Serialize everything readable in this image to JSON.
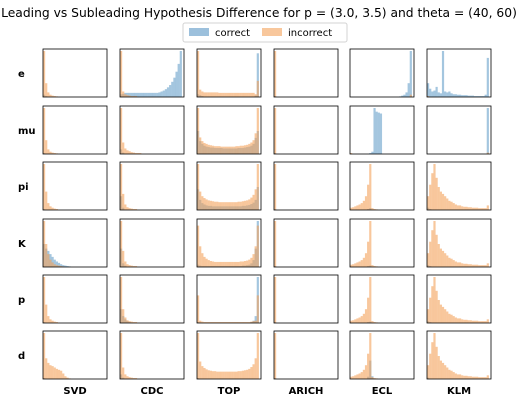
{
  "chart_data": {
    "type": "histogram-grid",
    "title": "Leading vs Subleading Hypothesis Difference for p = (3.0, 3.5) and theta = (40, 60)",
    "legend": {
      "placement": "top-center",
      "entries": [
        "correct",
        "incorrect"
      ]
    },
    "colors": {
      "correct": "#4a8dbf",
      "incorrect": "#f4a25a"
    },
    "rows": [
      "e",
      "mu",
      "pi",
      "K",
      "p",
      "d"
    ],
    "columns": [
      "SVD",
      "CDC",
      "TOP",
      "ARICH",
      "ECL",
      "KLM"
    ],
    "axes": {
      "ticks": false,
      "grid": false,
      "x_range": [
        0,
        1
      ],
      "bins": 30
    },
    "panels": [
      [
        {
          "correct": [
            0.05,
            0.02
          ],
          "incorrect": [
            1.0,
            0.3,
            0.1,
            0.05,
            0.03,
            0.02,
            0.01
          ]
        },
        {
          "correct": [
            0.06,
            0.07,
            0.09,
            0.09,
            0.09,
            0.09,
            0.09,
            0.09,
            0.09,
            0.09,
            0.09,
            0.09,
            0.09,
            0.09,
            0.09,
            0.09,
            0.09,
            0.09,
            0.1,
            0.12,
            0.14,
            0.17,
            0.21,
            0.26,
            0.33,
            0.42,
            0.55,
            0.72,
            1.0
          ],
          "incorrect": [
            1.0,
            0.12,
            0.06,
            0.04,
            0.03,
            0.02,
            0.02,
            0.02
          ]
        },
        {
          "correct": [
            0.06,
            0.04,
            0.02,
            0,
            0,
            0,
            0,
            0,
            0,
            0,
            0,
            0,
            0,
            0,
            0,
            0,
            0,
            0,
            0,
            0,
            0,
            0,
            0,
            0,
            0,
            0,
            0,
            0.03,
            0.95
          ],
          "incorrect": [
            1.0,
            0.16,
            0.12,
            0.1,
            0.1,
            0.1,
            0.1,
            0.1,
            0.1,
            0.1,
            0.09,
            0.09,
            0.09,
            0.09,
            0.09,
            0.09,
            0.09,
            0.09,
            0.09,
            0.09,
            0.09,
            0.09,
            0.09,
            0.09,
            0.09,
            0.09,
            0.09,
            0.06,
            0.35
          ]
        },
        {
          "correct": [
            0.02
          ],
          "incorrect": [
            1.0
          ]
        },
        {
          "correct": [
            0,
            0,
            0,
            0,
            0,
            0,
            0,
            0,
            0,
            0,
            0,
            0,
            0,
            0,
            0,
            0,
            0,
            0,
            0,
            0,
            0,
            0,
            0,
            0.01,
            0.03,
            0.05,
            0.1,
            0.3,
            1.0
          ],
          "incorrect": [
            0,
            0,
            0,
            0,
            0,
            0,
            0,
            0,
            0,
            0,
            0,
            0,
            0,
            0,
            0,
            0,
            0,
            0,
            0,
            0,
            0,
            0,
            0,
            0,
            0,
            0,
            0,
            0,
            0.05
          ]
        },
        {
          "correct": [
            0.3,
            0.18,
            0.12,
            0.14,
            0.22,
            0.1,
            0.08,
            1.0,
            0.12,
            0.1,
            0.12,
            0.08,
            0.06,
            0.06,
            0.05,
            0.05,
            0.04,
            0.04,
            0.04,
            0.03,
            0.03,
            0.03,
            0.02,
            0.02,
            0.02,
            0.02,
            0.02,
            0.05,
            0.85
          ],
          "incorrect": [
            0.02
          ]
        }
      ],
      [
        {
          "correct": [
            0.02
          ],
          "incorrect": [
            1.0,
            0.3,
            0.1,
            0.05,
            0.03,
            0.02,
            0.01
          ]
        },
        {
          "correct": [
            0.1,
            0.03
          ],
          "incorrect": [
            1.0,
            0.25,
            0.12,
            0.08,
            0.06,
            0.04,
            0.03,
            0.02,
            0.02,
            0.02
          ]
        },
        {
          "correct": [
            0.5,
            0.28,
            0.22,
            0.18,
            0.16,
            0.15,
            0.14,
            0.14,
            0.13,
            0.13,
            0.13,
            0.13,
            0.12,
            0.12,
            0.12,
            0.12,
            0.12,
            0.12,
            0.12,
            0.13,
            0.13,
            0.13,
            0.14,
            0.15,
            0.16,
            0.18,
            0.22,
            0.35,
            0.5
          ],
          "incorrect": [
            1.0,
            0.36,
            0.28,
            0.24,
            0.22,
            0.2,
            0.19,
            0.18,
            0.17,
            0.17,
            0.17,
            0.16,
            0.16,
            0.16,
            0.16,
            0.16,
            0.16,
            0.16,
            0.17,
            0.17,
            0.18,
            0.18,
            0.19,
            0.2,
            0.22,
            0.25,
            0.3,
            0.45,
            1.0
          ]
        },
        {
          "correct": [
            0.02
          ],
          "incorrect": [
            1.0
          ]
        },
        {
          "correct": [
            0,
            0,
            0,
            0,
            0,
            0,
            0,
            0,
            0,
            0.02,
            0.05,
            1.0,
            0.92,
            0.9,
            0.88
          ],
          "incorrect": [
            0.02
          ]
        },
        {
          "correct": [
            0,
            0,
            0,
            0,
            0,
            0,
            0,
            0,
            0,
            0,
            0,
            0,
            0,
            0,
            0,
            0,
            0,
            0,
            0,
            0,
            0,
            0,
            0,
            0,
            0,
            0,
            0,
            0,
            1.0
          ],
          "incorrect": [
            0,
            0,
            0,
            0,
            0,
            0,
            0,
            0,
            0,
            0,
            0,
            0,
            0,
            0,
            0,
            0,
            0,
            0,
            0,
            0,
            0,
            0,
            0,
            0,
            0,
            0,
            0,
            0,
            0.03
          ]
        }
      ],
      [
        {
          "correct": [
            0.02
          ],
          "incorrect": [
            1.0,
            0.4,
            0.15,
            0.08,
            0.05,
            0.03,
            0.02
          ]
        },
        {
          "correct": [
            0.3,
            0.05
          ],
          "incorrect": [
            1.0,
            0.35,
            0.12,
            0.06,
            0.04,
            0.03,
            0.02,
            0.02
          ]
        },
        {
          "correct": [
            0.45,
            0.22,
            0.15,
            0.12,
            0.1,
            0.09,
            0.09,
            0.08,
            0.08,
            0.08,
            0.08,
            0.08,
            0.08,
            0.08,
            0.08,
            0.08,
            0.08,
            0.08,
            0.08,
            0.08,
            0.08,
            0.09,
            0.09,
            0.1,
            0.11,
            0.13,
            0.16,
            0.22,
            0.5
          ],
          "incorrect": [
            1.0,
            0.4,
            0.3,
            0.26,
            0.23,
            0.21,
            0.2,
            0.19,
            0.18,
            0.18,
            0.17,
            0.17,
            0.17,
            0.17,
            0.17,
            0.17,
            0.17,
            0.17,
            0.17,
            0.18,
            0.18,
            0.19,
            0.2,
            0.21,
            0.23,
            0.27,
            0.33,
            0.45,
            1.0
          ]
        },
        {
          "correct": [
            0.02
          ],
          "incorrect": [
            1.0
          ]
        },
        {
          "correct": [
            0,
            0,
            0,
            0,
            0,
            0,
            0,
            0,
            0.02,
            0.04
          ],
          "incorrect": [
            0.05,
            0.06,
            0.08,
            0.1,
            0.12,
            0.15,
            0.2,
            0.3,
            0.55,
            1.0,
            0.04,
            0.02,
            0.01
          ]
        },
        {
          "correct": [
            0.05,
            0.02
          ],
          "incorrect": [
            0.3,
            0.55,
            0.8,
            1.0,
            0.7,
            0.5,
            0.4,
            0.35,
            0.3,
            0.25,
            0.2,
            0.18,
            0.15,
            0.12,
            0.1,
            0.1,
            0.08,
            0.07,
            0.07,
            0.06,
            0.06,
            0.05,
            0.05,
            0.05,
            0.04,
            0.04,
            0.04,
            0.04,
            0.1
          ]
        }
      ],
      [
        {
          "correct": [
            0.5,
            0.4,
            0.35,
            0.28,
            0.22,
            0.16,
            0.12,
            0.09,
            0.06,
            0.04,
            0.03,
            0.02,
            0.01
          ],
          "incorrect": [
            1.0,
            0.5,
            0.28,
            0.16,
            0.1,
            0.06,
            0.04,
            0.03,
            0.02,
            0.01
          ]
        },
        {
          "correct": [
            0.4,
            0.08,
            0.03
          ],
          "incorrect": [
            1.0,
            0.35,
            0.12,
            0.06,
            0.04,
            0.03,
            0.02,
            0.02
          ]
        },
        {
          "correct": [
            0.05,
            0.03,
            0.02,
            0.02,
            0.02,
            0.02,
            0.02,
            0.02,
            0.02,
            0.02,
            0.02,
            0.02,
            0.02,
            0.02,
            0.02,
            0.02,
            0.02,
            0.02,
            0.02,
            0.02,
            0.02,
            0.03,
            0.03,
            0.04,
            0.05,
            0.08,
            0.15,
            0.4,
            1.0
          ],
          "incorrect": [
            0.9,
            0.45,
            0.3,
            0.22,
            0.18,
            0.15,
            0.13,
            0.12,
            0.11,
            0.11,
            0.11,
            0.11,
            0.11,
            0.11,
            0.11,
            0.11,
            0.11,
            0.11,
            0.11,
            0.11,
            0.12,
            0.12,
            0.13,
            0.14,
            0.16,
            0.2,
            0.28,
            0.45,
            0.9
          ]
        },
        {
          "correct": [
            0.02
          ],
          "incorrect": [
            1.0
          ]
        },
        {
          "correct": [
            0,
            0,
            0,
            0,
            0,
            0,
            0,
            0,
            0.02,
            0.03
          ],
          "incorrect": [
            0.05,
            0.06,
            0.08,
            0.1,
            0.12,
            0.15,
            0.2,
            0.3,
            0.55,
            1.0,
            0.04,
            0.02,
            0.01
          ]
        },
        {
          "correct": [
            0.04,
            0.02
          ],
          "incorrect": [
            0.3,
            0.55,
            0.8,
            1.0,
            0.7,
            0.5,
            0.4,
            0.35,
            0.3,
            0.25,
            0.2,
            0.18,
            0.15,
            0.12,
            0.1,
            0.1,
            0.08,
            0.07,
            0.07,
            0.06,
            0.06,
            0.05,
            0.05,
            0.05,
            0.04,
            0.04,
            0.04,
            0.04,
            0.08
          ]
        }
      ],
      [
        {
          "correct": [
            0.02
          ],
          "incorrect": [
            1.0,
            0.4,
            0.15,
            0.08,
            0.05,
            0.03,
            0.02
          ]
        },
        {
          "correct": [
            0.3,
            0.15,
            0.08,
            0.04,
            0.02
          ],
          "incorrect": [
            1.0,
            0.3,
            0.12,
            0.06,
            0.04,
            0.03,
            0.02,
            0.02
          ]
        },
        {
          "correct": [
            0.02,
            0.01,
            0,
            0,
            0,
            0,
            0,
            0,
            0,
            0,
            0,
            0,
            0,
            0,
            0,
            0,
            0,
            0,
            0,
            0,
            0,
            0,
            0,
            0,
            0,
            0.02,
            0.05,
            0.15,
            1.0
          ],
          "incorrect": [
            0.6,
            0.05,
            0.03,
            0.02,
            0.02,
            0.02,
            0.02,
            0.02,
            0.02,
            0.02,
            0.02,
            0.02,
            0.02,
            0.02,
            0.02,
            0.02,
            0.02,
            0.02,
            0.02,
            0.02,
            0.02,
            0.02,
            0.02,
            0.02,
            0.02,
            0.03,
            0.04,
            0.05,
            0.6
          ]
        },
        {
          "correct": [
            0.02
          ],
          "incorrect": [
            1.0
          ]
        },
        {
          "correct": [
            0,
            0,
            0,
            0,
            0,
            0,
            0,
            0,
            0.02,
            0.03
          ],
          "incorrect": [
            0.05,
            0.06,
            0.08,
            0.1,
            0.12,
            0.15,
            0.2,
            0.3,
            0.55,
            1.0,
            0.04,
            0.02,
            0.01
          ]
        },
        {
          "correct": [
            0.04,
            0.02
          ],
          "incorrect": [
            0.3,
            0.55,
            0.8,
            1.0,
            0.7,
            0.5,
            0.4,
            0.35,
            0.3,
            0.25,
            0.2,
            0.18,
            0.15,
            0.12,
            0.1,
            0.1,
            0.08,
            0.07,
            0.07,
            0.06,
            0.06,
            0.05,
            0.05,
            0.05,
            0.04,
            0.04,
            0.04,
            0.04,
            0.08
          ]
        }
      ],
      [
        {
          "correct": [
            0.02
          ],
          "incorrect": [
            1.0,
            0.45,
            0.35,
            0.3,
            0.28,
            0.25,
            0.22,
            0.2,
            0.18,
            0.12,
            0.06,
            0.03,
            0.01
          ]
        },
        {
          "correct": [
            0.1,
            0.03
          ],
          "incorrect": [
            1.0,
            0.25,
            0.1,
            0.06,
            0.04,
            0.03,
            0.02,
            0.02
          ]
        },
        {
          "correct": [
            0.02
          ],
          "incorrect": [
            1.0,
            0.38,
            0.28,
            0.24,
            0.21,
            0.19,
            0.18,
            0.17,
            0.17,
            0.16,
            0.16,
            0.16,
            0.16,
            0.16,
            0.16,
            0.16,
            0.16,
            0.16,
            0.16,
            0.17,
            0.17,
            0.18,
            0.19,
            0.2,
            0.22,
            0.26,
            0.32,
            0.45,
            1.0
          ]
        },
        {
          "correct": [
            0.02
          ],
          "incorrect": [
            1.0
          ]
        },
        {
          "correct": [
            0,
            0,
            0,
            0,
            0,
            0,
            0,
            0,
            0.05,
            0.4,
            0.06
          ],
          "incorrect": [
            0.05,
            0.06,
            0.08,
            0.1,
            0.12,
            0.15,
            0.2,
            0.3,
            0.55,
            1.0,
            0.04,
            0.02,
            0.01
          ]
        },
        {
          "correct": [
            0.03
          ],
          "incorrect": [
            0.3,
            0.55,
            0.8,
            1.0,
            0.7,
            0.5,
            0.4,
            0.35,
            0.3,
            0.25,
            0.2,
            0.18,
            0.15,
            0.12,
            0.1,
            0.1,
            0.08,
            0.07,
            0.07,
            0.06,
            0.06,
            0.05,
            0.05,
            0.05,
            0.04,
            0.04,
            0.04,
            0.04,
            0.08
          ]
        }
      ]
    ]
  }
}
